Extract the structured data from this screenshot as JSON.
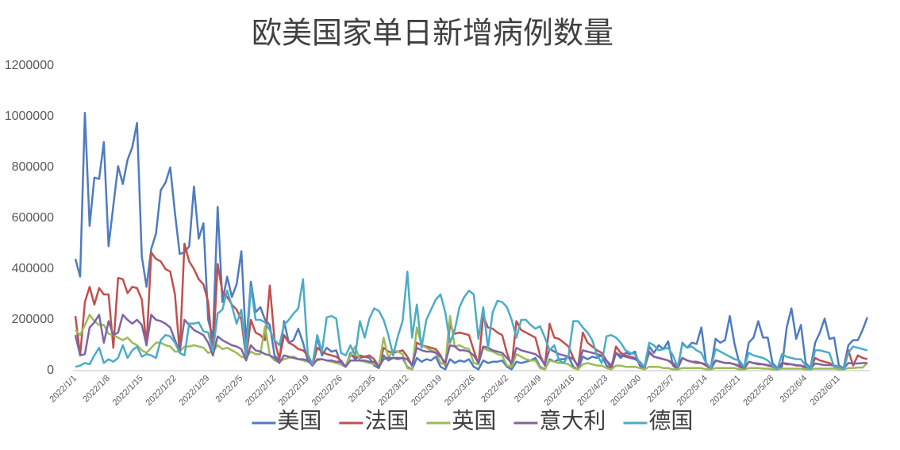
{
  "chart_data": {
    "type": "line",
    "title": "欧美国家单日新增病例数量",
    "categories": [
      "2022/1/1",
      null,
      null,
      null,
      null,
      null,
      null,
      "2022/1/8",
      null,
      null,
      null,
      null,
      null,
      null,
      "2022/1/15",
      null,
      null,
      null,
      null,
      null,
      null,
      "2022/1/22",
      null,
      null,
      null,
      null,
      null,
      null,
      "2022/1/29",
      null,
      null,
      null,
      null,
      null,
      null,
      "2022/2/5",
      null,
      null,
      null,
      null,
      null,
      null,
      "2022/2/12",
      null,
      null,
      null,
      null,
      null,
      null,
      "2022/2/19",
      null,
      null,
      null,
      null,
      null,
      null,
      "2022/2/26",
      null,
      null,
      null,
      null,
      null,
      null,
      "2022/3/5",
      null,
      null,
      null,
      null,
      null,
      null,
      "2022/3/12",
      null,
      null,
      null,
      null,
      null,
      null,
      "2022/3/19",
      null,
      null,
      null,
      null,
      null,
      null,
      "2022/3/26",
      null,
      null,
      null,
      null,
      null,
      null,
      "2022/4/2",
      null,
      null,
      null,
      null,
      null,
      null,
      "2022/4/9",
      null,
      null,
      null,
      null,
      null,
      null,
      "2022/4/16",
      null,
      null,
      null,
      null,
      null,
      null,
      "2022/4/23",
      null,
      null,
      null,
      null,
      null,
      null,
      "2022/4/30",
      null,
      null,
      null,
      null,
      null,
      null,
      "2022/5/7",
      null,
      null,
      null,
      null,
      null,
      null,
      "2022/5/14",
      null,
      null,
      null,
      null,
      null,
      null,
      "2022/5/21",
      null,
      null,
      null,
      null,
      null,
      null,
      "2022/5/28",
      null,
      null,
      null,
      null,
      null,
      null,
      "2022/6/4",
      null,
      null,
      null,
      null,
      null,
      null,
      "2022/6/11",
      null,
      null,
      null,
      null,
      null,
      null
    ],
    "series": [
      {
        "name": "美国",
        "color": "#4f7bc1",
        "values": [
          440000,
          370000,
          1015000,
          570000,
          760000,
          755000,
          900000,
          490000,
          650000,
          805000,
          735000,
          830000,
          880000,
          975000,
          450000,
          330000,
          480000,
          540000,
          710000,
          740000,
          800000,
          620000,
          460000,
          465000,
          490000,
          725000,
          520000,
          580000,
          200000,
          130000,
          645000,
          270000,
          370000,
          290000,
          340000,
          470000,
          100000,
          350000,
          230000,
          250000,
          200000,
          180000,
          60000,
          40000,
          195000,
          110000,
          120000,
          165000,
          110000,
          40000,
          20000,
          130000,
          60000,
          90000,
          75000,
          80000,
          25000,
          15000,
          70000,
          45000,
          60000,
          55000,
          50000,
          20000,
          10000,
          60000,
          40000,
          50000,
          45000,
          50000,
          15000,
          5000,
          50000,
          35000,
          45000,
          40000,
          55000,
          15000,
          5000,
          45000,
          30000,
          40000,
          35000,
          45000,
          15000,
          5000,
          40000,
          30000,
          35000,
          35000,
          40000,
          15000,
          5000,
          35000,
          30000,
          35000,
          40000,
          50000,
          15000,
          5000,
          45000,
          35000,
          45000,
          45000,
          55000,
          15000,
          5000,
          55000,
          45000,
          55000,
          50000,
          60000,
          20000,
          5000,
          70000,
          50000,
          70000,
          65000,
          75000,
          20000,
          5000,
          95000,
          70000,
          100000,
          85000,
          115000,
          20000,
          5000,
          110000,
          90000,
          110000,
          105000,
          170000,
          30000,
          10000,
          125000,
          110000,
          120000,
          215000,
          105000,
          30000,
          10000,
          110000,
          130000,
          195000,
          130000,
          130000,
          30000,
          10000,
          15000,
          170000,
          245000,
          125000,
          180000,
          30000,
          10000,
          110000,
          150000,
          205000,
          125000,
          130000,
          20000,
          10000,
          100000,
          120000,
          120000,
          160000,
          210000
        ]
      },
      {
        "name": "法国",
        "color": "#c0504d",
        "values": [
          215000,
          60000,
          270000,
          330000,
          260000,
          325000,
          300000,
          300000,
          90000,
          365000,
          360000,
          305000,
          330000,
          325000,
          280000,
          100000,
          465000,
          440000,
          430000,
          400000,
          390000,
          300000,
          70000,
          500000,
          430000,
          400000,
          360000,
          340000,
          270000,
          60000,
          420000,
          310000,
          290000,
          260000,
          240000,
          200000,
          50000,
          200000,
          150000,
          140000,
          120000,
          335000,
          120000,
          45000,
          140000,
          110000,
          100000,
          85000,
          80000,
          60000,
          20000,
          90000,
          75000,
          65000,
          60000,
          55000,
          40000,
          15000,
          60000,
          55000,
          50000,
          55000,
          60000,
          45000,
          15000,
          90000,
          75000,
          70000,
          75000,
          80000,
          55000,
          20000,
          110000,
          100000,
          95000,
          90000,
          85000,
          60000,
          20000,
          180000,
          145000,
          150000,
          145000,
          140000,
          80000,
          25000,
          215000,
          170000,
          165000,
          150000,
          140000,
          70000,
          20000,
          195000,
          160000,
          150000,
          140000,
          130000,
          60000,
          20000,
          185000,
          130000,
          125000,
          110000,
          95000,
          50000,
          15000,
          150000,
          110000,
          95000,
          80000,
          70000,
          40000,
          10000,
          95000,
          70000,
          60000,
          55000,
          50000,
          30000,
          10000,
          75000,
          55000,
          50000,
          45000,
          40000,
          25000,
          8000,
          50000,
          40000,
          35000,
          30000,
          30000,
          20000,
          5000,
          40000,
          35000,
          30000,
          30000,
          25000,
          15000,
          5000,
          35000,
          30000,
          25000,
          25000,
          20000,
          15000,
          5000,
          30000,
          25000,
          25000,
          20000,
          20000,
          10000,
          5000,
          50000,
          40000,
          35000,
          30000,
          20000,
          10000,
          5000,
          80000,
          20000,
          60000,
          50000,
          45000
        ]
      },
      {
        "name": "英国",
        "color": "#9bbb59",
        "values": [
          160000,
          140000,
          180000,
          220000,
          195000,
          180000,
          180000,
          145000,
          140000,
          130000,
          120000,
          130000,
          110000,
          100000,
          80000,
          70000,
          90000,
          110000,
          110000,
          100000,
          95000,
          75000,
          75000,
          95000,
          95000,
          100000,
          95000,
          90000,
          70000,
          75000,
          100000,
          85000,
          90000,
          80000,
          70000,
          55000,
          50000,
          75000,
          65000,
          65000,
          175000,
          60000,
          40000,
          35000,
          45000,
          50000,
          55000,
          45000,
          40000,
          35000,
          30000,
          40000,
          45000,
          40000,
          35000,
          30000,
          25000,
          20000,
          60000,
          95000,
          40000,
          35000,
          30000,
          25000,
          20000,
          130000,
          50000,
          80000,
          75000,
          65000,
          10000,
          5000,
          170000,
          100000,
          90000,
          80000,
          75000,
          30000,
          25000,
          215000,
          95000,
          100000,
          90000,
          85000,
          30000,
          25000,
          90000,
          80000,
          75000,
          65000,
          60000,
          20000,
          15000,
          65000,
          55000,
          45000,
          40000,
          40000,
          10000,
          5000,
          40000,
          35000,
          30000,
          30000,
          25000,
          10000,
          5000,
          25000,
          30000,
          25000,
          20000,
          20000,
          10000,
          5000,
          20000,
          20000,
          15000,
          15000,
          15000,
          10000,
          5000,
          15000,
          15000,
          15000,
          10000,
          10000,
          5000,
          5000,
          10000,
          10000,
          10000,
          10000,
          10000,
          5000,
          5000,
          10000,
          10000,
          10000,
          10000,
          10000,
          5000,
          5000,
          10000,
          10000,
          10000,
          8000,
          8000,
          5000,
          5000,
          8000,
          8000,
          8000,
          8000,
          8000,
          5000,
          5000,
          8000,
          8000,
          8000,
          8000,
          8000,
          5000,
          5000,
          10000,
          10000,
          12000,
          12000,
          30000
        ]
      },
      {
        "name": "意大利",
        "color": "#8064a2",
        "values": [
          140000,
          60000,
          65000,
          170000,
          190000,
          220000,
          110000,
          195000,
          140000,
          150000,
          220000,
          200000,
          185000,
          200000,
          180000,
          100000,
          220000,
          200000,
          195000,
          185000,
          170000,
          120000,
          75000,
          200000,
          180000,
          160000,
          150000,
          140000,
          110000,
          60000,
          135000,
          120000,
          110000,
          100000,
          95000,
          85000,
          40000,
          100000,
          80000,
          75000,
          65000,
          60000,
          50000,
          30000,
          60000,
          55000,
          50000,
          45000,
          45000,
          40000,
          20000,
          45000,
          45000,
          40000,
          40000,
          35000,
          35000,
          15000,
          40000,
          40000,
          40000,
          40000,
          35000,
          35000,
          15000,
          45000,
          50000,
          50000,
          50000,
          50000,
          45000,
          20000,
          90000,
          80000,
          75000,
          75000,
          70000,
          55000,
          30000,
          100000,
          95000,
          80000,
          80000,
          75000,
          60000,
          30000,
          95000,
          90000,
          80000,
          75000,
          70000,
          50000,
          30000,
          90000,
          80000,
          75000,
          70000,
          65000,
          50000,
          25000,
          85000,
          75000,
          65000,
          60000,
          55000,
          45000,
          20000,
          80000,
          75000,
          70000,
          65000,
          60000,
          40000,
          20000,
          70000,
          60000,
          55000,
          50000,
          45000,
          35000,
          15000,
          70000,
          55000,
          50000,
          45000,
          40000,
          30000,
          15000,
          50000,
          40000,
          35000,
          35000,
          30000,
          25000,
          10000,
          40000,
          35000,
          30000,
          30000,
          25000,
          20000,
          10000,
          35000,
          30000,
          28000,
          25000,
          22000,
          18000,
          8000,
          30000,
          28000,
          25000,
          22000,
          20000,
          15000,
          8000,
          28000,
          25000,
          22000,
          22000,
          20000,
          15000,
          8000,
          30000,
          28000,
          28000,
          30000,
          30000
        ]
      },
      {
        "name": "德国",
        "color": "#4bacc6",
        "values": [
          15000,
          20000,
          30000,
          25000,
          60000,
          90000,
          30000,
          45000,
          35000,
          50000,
          100000,
          50000,
          80000,
          95000,
          55000,
          65000,
          60000,
          50000,
          120000,
          140000,
          135000,
          110000,
          70000,
          60000,
          185000,
          185000,
          190000,
          155000,
          150000,
          75000,
          225000,
          240000,
          315000,
          255000,
          185000,
          240000,
          60000,
          330000,
          200000,
          200000,
          190000,
          160000,
          120000,
          100000,
          180000,
          200000,
          225000,
          245000,
          360000,
          65000,
          25000,
          140000,
          75000,
          210000,
          215000,
          205000,
          70000,
          60000,
          100000,
          60000,
          195000,
          130000,
          205000,
          245000,
          235000,
          200000,
          140000,
          60000,
          135000,
          195000,
          390000,
          130000,
          260000,
          90000,
          200000,
          240000,
          280000,
          300000,
          230000,
          110000,
          160000,
          250000,
          290000,
          315000,
          300000,
          125000,
          250000,
          90000,
          230000,
          275000,
          270000,
          250000,
          200000,
          130000,
          200000,
          200000,
          180000,
          165000,
          175000,
          130000,
          80000,
          100000,
          40000,
          30000,
          60000,
          195000,
          195000,
          170000,
          150000,
          120000,
          60000,
          30000,
          135000,
          140000,
          130000,
          110000,
          80000,
          70000,
          65000,
          30000,
          15000,
          110000,
          100000,
          80000,
          85000,
          90000,
          60000,
          15000,
          105000,
          90000,
          95000,
          80000,
          70000,
          30000,
          10000,
          85000,
          75000,
          65000,
          55000,
          45000,
          40000,
          15000,
          70000,
          60000,
          55000,
          50000,
          40000,
          20000,
          5000,
          65000,
          55000,
          50000,
          45000,
          45000,
          20000,
          5000,
          80000,
          80000,
          75000,
          70000,
          15000,
          15000,
          5000,
          70000,
          95000,
          90000,
          85000,
          80000
        ]
      }
    ],
    "ylim": [
      0,
      1200000
    ],
    "yticks": [
      0,
      200000,
      400000,
      600000,
      800000,
      1000000,
      1200000
    ],
    "grid": false,
    "legend": "bottom"
  }
}
